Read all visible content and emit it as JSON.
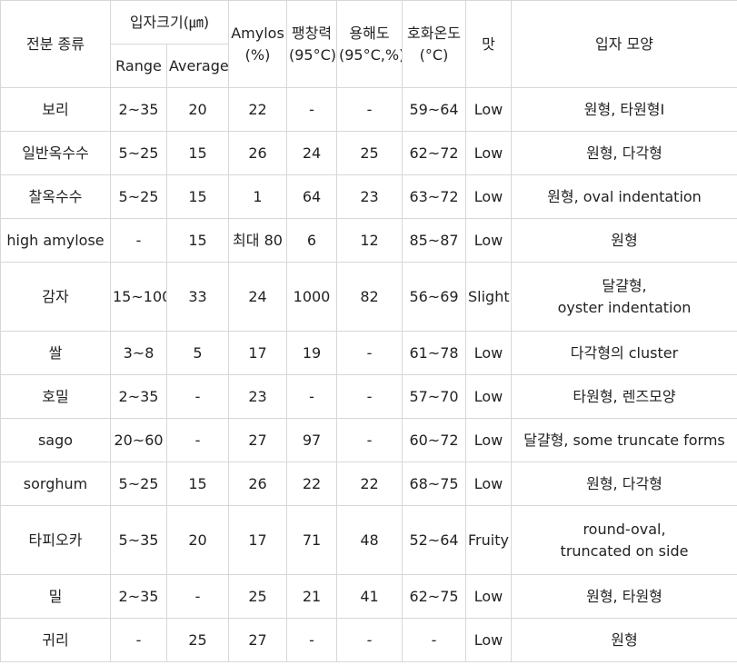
{
  "table": {
    "headers": {
      "starch_type": "전분 종류",
      "granule_size": "입자크기(㎛)",
      "range": "Range",
      "average": "Average",
      "amylose": [
        "Amylos",
        "(%)"
      ],
      "swelling_power": [
        "팽창력",
        "(95°C)"
      ],
      "solubility": [
        "용해도",
        "(95°C,%)"
      ],
      "gelatinization_temp": [
        "호화온도",
        "(°C)"
      ],
      "taste": "맛",
      "granule_shape": "입자 모양"
    },
    "rows": [
      {
        "starch": "보리",
        "range": "2~35",
        "average": "20",
        "amylose": "22",
        "swelling": "-",
        "solubility": "-",
        "gel_temp": "59~64",
        "taste": "Low",
        "shape": [
          "원형, 타원형I"
        ]
      },
      {
        "starch": "일반옥수수",
        "range": "5~25",
        "average": "15",
        "amylose": "26",
        "swelling": "24",
        "solubility": "25",
        "gel_temp": "62~72",
        "taste": "Low",
        "shape": [
          "원형, 다각형"
        ]
      },
      {
        "starch": "찰옥수수",
        "range": "5~25",
        "average": "15",
        "amylose": "1",
        "swelling": "64",
        "solubility": "23",
        "gel_temp": "63~72",
        "taste": "Low",
        "shape": [
          "원형, oval indentation"
        ]
      },
      {
        "starch": "high amylose",
        "range": "-",
        "average": "15",
        "amylose": "최대 80",
        "swelling": "6",
        "solubility": "12",
        "gel_temp": "85~87",
        "taste": "Low",
        "shape": [
          "원형"
        ]
      },
      {
        "starch": "감자",
        "range": "15~100",
        "average": "33",
        "amylose": "24",
        "swelling": "1000",
        "solubility": "82",
        "gel_temp": "56~69",
        "taste": "Slight",
        "shape": [
          "달걀형,",
          "oyster indentation"
        ]
      },
      {
        "starch": "쌀",
        "range": "3~8",
        "average": "5",
        "amylose": "17",
        "swelling": "19",
        "solubility": "-",
        "gel_temp": "61~78",
        "taste": "Low",
        "shape": [
          "다각형의 cluster"
        ]
      },
      {
        "starch": "호밀",
        "range": "2~35",
        "average": "-",
        "amylose": "23",
        "swelling": "-",
        "solubility": "-",
        "gel_temp": "57~70",
        "taste": "Low",
        "shape": [
          "타원형, 렌즈모양"
        ]
      },
      {
        "starch": "sago",
        "range": "20~60",
        "average": "-",
        "amylose": "27",
        "swelling": "97",
        "solubility": "-",
        "gel_temp": "60~72",
        "taste": "Low",
        "shape": [
          "달걀형, some truncate forms"
        ]
      },
      {
        "starch": "sorghum",
        "range": "5~25",
        "average": "15",
        "amylose": "26",
        "swelling": "22",
        "solubility": "22",
        "gel_temp": "68~75",
        "taste": "Low",
        "shape": [
          "원형, 다각형"
        ]
      },
      {
        "starch": "타피오카",
        "range": "5~35",
        "average": "20",
        "amylose": "17",
        "swelling": "71",
        "solubility": "48",
        "gel_temp": "52~64",
        "taste": "Fruity",
        "shape": [
          "round-oval,",
          "truncated on side"
        ]
      },
      {
        "starch": "밀",
        "range": "2~35",
        "average": "-",
        "amylose": "25",
        "swelling": "21",
        "solubility": "41",
        "gel_temp": "62~75",
        "taste": "Low",
        "shape": [
          "원형, 타원형"
        ]
      },
      {
        "starch": "귀리",
        "range": "-",
        "average": "25",
        "amylose": "27",
        "swelling": "-",
        "solubility": "-",
        "gel_temp": "-",
        "taste": "Low",
        "shape": [
          "원형"
        ]
      }
    ]
  }
}
